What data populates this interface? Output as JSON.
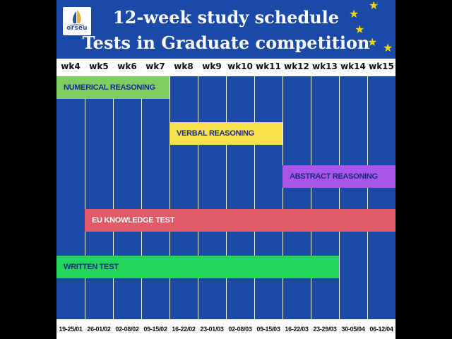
{
  "logo": {
    "text": "orseu"
  },
  "title": {
    "line1": "12-week study schedule",
    "line2": "Tests in Graduate competition"
  },
  "weeks": [
    "wk4",
    "wk5",
    "wk6",
    "wk7",
    "wk8",
    "wk9",
    "wk10",
    "wk11",
    "wk12",
    "wk13",
    "wk14",
    "wk15"
  ],
  "dates": [
    "19-25/01",
    "26-01/02",
    "02-08/02",
    "09-15/02",
    "16-22/02",
    "23-01/03",
    "02-08/03",
    "09-15/03",
    "16-22/03",
    "23-29/03",
    "30-05/04",
    "06-12/04"
  ],
  "tasks": [
    {
      "label": "NUMERICAL REASONING",
      "start_week": "wk4",
      "end_week": "wk7",
      "color": "#7ecf62",
      "text_color": "#1a2b80"
    },
    {
      "label": "VERBAL REASONING",
      "start_week": "wk8",
      "end_week": "wk11",
      "color": "#f8e14a",
      "text_color": "#1a2b80"
    },
    {
      "label": "ABSTRACT REASONING",
      "start_week": "wk12",
      "end_week": "wk15",
      "color": "#a855e8",
      "text_color": "#1a2b80"
    },
    {
      "label": "EU KNOWLEDGE TEST",
      "start_week": "wk5",
      "end_week": "wk15",
      "color": "#e05a67",
      "text_color": "#ffffff"
    },
    {
      "label": "WRITTEN TEST",
      "start_week": "wk4",
      "end_week": "wk13",
      "color": "#22d65a",
      "text_color": "#1a2b80"
    }
  ],
  "colors": {
    "background": "#1a49a8",
    "stars": "#f6d400",
    "grid_lines": "#ffffff"
  }
}
